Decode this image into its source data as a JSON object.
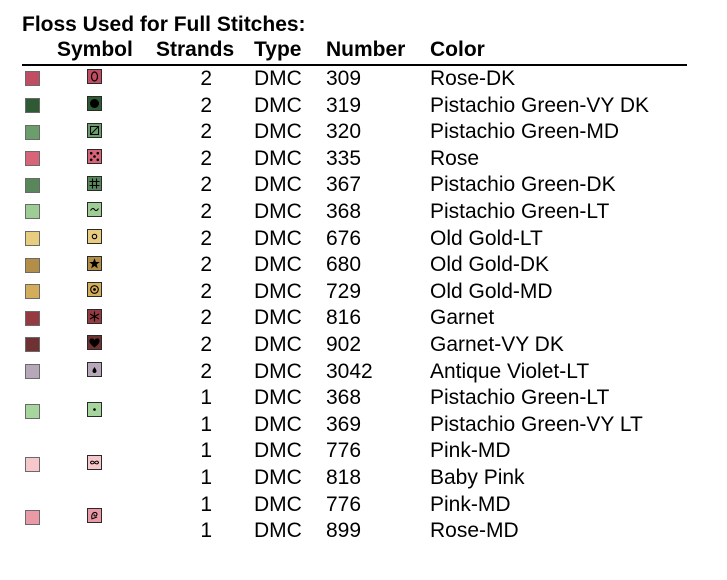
{
  "title": "Floss Used for Full Stitches:",
  "headers": {
    "symbol": "Symbol",
    "strands": "Strands",
    "type": "Type",
    "number": "Number",
    "color": "Color"
  },
  "groups": [
    {
      "swatch": "#c04d62",
      "symbol": "oval-icon",
      "entries": [
        {
          "strands": "2",
          "type": "DMC",
          "number": "309",
          "color": "Rose-DK"
        }
      ]
    },
    {
      "swatch": "#2e5a34",
      "symbol": "filled-circle-icon",
      "entries": [
        {
          "strands": "2",
          "type": "DMC",
          "number": "319",
          "color": "Pistachio Green-VY DK"
        }
      ]
    },
    {
      "swatch": "#6c9d6d",
      "symbol": "slashed-square-icon",
      "entries": [
        {
          "strands": "2",
          "type": "DMC",
          "number": "320",
          "color": "Pistachio Green-MD"
        }
      ]
    },
    {
      "swatch": "#d86478",
      "symbol": "x-dots-icon",
      "entries": [
        {
          "strands": "2",
          "type": "DMC",
          "number": "335",
          "color": "Rose"
        }
      ]
    },
    {
      "swatch": "#57875a",
      "symbol": "hash-icon",
      "entries": [
        {
          "strands": "2",
          "type": "DMC",
          "number": "367",
          "color": "Pistachio Green-DK"
        }
      ]
    },
    {
      "swatch": "#9ecc95",
      "symbol": "tilde-icon",
      "entries": [
        {
          "strands": "2",
          "type": "DMC",
          "number": "368",
          "color": "Pistachio Green-LT"
        }
      ]
    },
    {
      "swatch": "#e8cd80",
      "symbol": "small-circle-icon",
      "entries": [
        {
          "strands": "2",
          "type": "DMC",
          "number": "676",
          "color": "Old Gold-LT"
        }
      ]
    },
    {
      "swatch": "#b38e48",
      "symbol": "star-icon",
      "entries": [
        {
          "strands": "2",
          "type": "DMC",
          "number": "680",
          "color": "Old Gold-DK"
        }
      ]
    },
    {
      "swatch": "#d3ad5a",
      "symbol": "dotted-circle-icon",
      "entries": [
        {
          "strands": "2",
          "type": "DMC",
          "number": "729",
          "color": "Old Gold-MD"
        }
      ]
    },
    {
      "swatch": "#963a42",
      "symbol": "asterisk-icon",
      "entries": [
        {
          "strands": "2",
          "type": "DMC",
          "number": "816",
          "color": "Garnet"
        }
      ]
    },
    {
      "swatch": "#6f3131",
      "symbol": "heart-icon",
      "entries": [
        {
          "strands": "2",
          "type": "DMC",
          "number": "902",
          "color": "Garnet-VY DK"
        }
      ]
    },
    {
      "swatch": "#b6a8b8",
      "symbol": "drop-icon",
      "entries": [
        {
          "strands": "2",
          "type": "DMC",
          "number": "3042",
          "color": "Antique Violet-LT"
        }
      ]
    },
    {
      "swatch": "#a7d59e",
      "symbol": "center-dot-icon",
      "entries": [
        {
          "strands": "1",
          "type": "DMC",
          "number": "368",
          "color": "Pistachio Green-LT"
        },
        {
          "strands": "1",
          "type": "DMC",
          "number": "369",
          "color": "Pistachio Green-VY LT"
        }
      ]
    },
    {
      "swatch": "#f6c8cc",
      "symbol": "infinity-icon",
      "entries": [
        {
          "strands": "1",
          "type": "DMC",
          "number": "776",
          "color": "Pink-MD"
        },
        {
          "strands": "1",
          "type": "DMC",
          "number": "818",
          "color": "Baby Pink"
        }
      ]
    },
    {
      "swatch": "#e99aa6",
      "symbol": "swirl-icon",
      "entries": [
        {
          "strands": "1",
          "type": "DMC",
          "number": "776",
          "color": "Pink-MD"
        },
        {
          "strands": "1",
          "type": "DMC",
          "number": "899",
          "color": "Rose-MD"
        }
      ]
    }
  ]
}
